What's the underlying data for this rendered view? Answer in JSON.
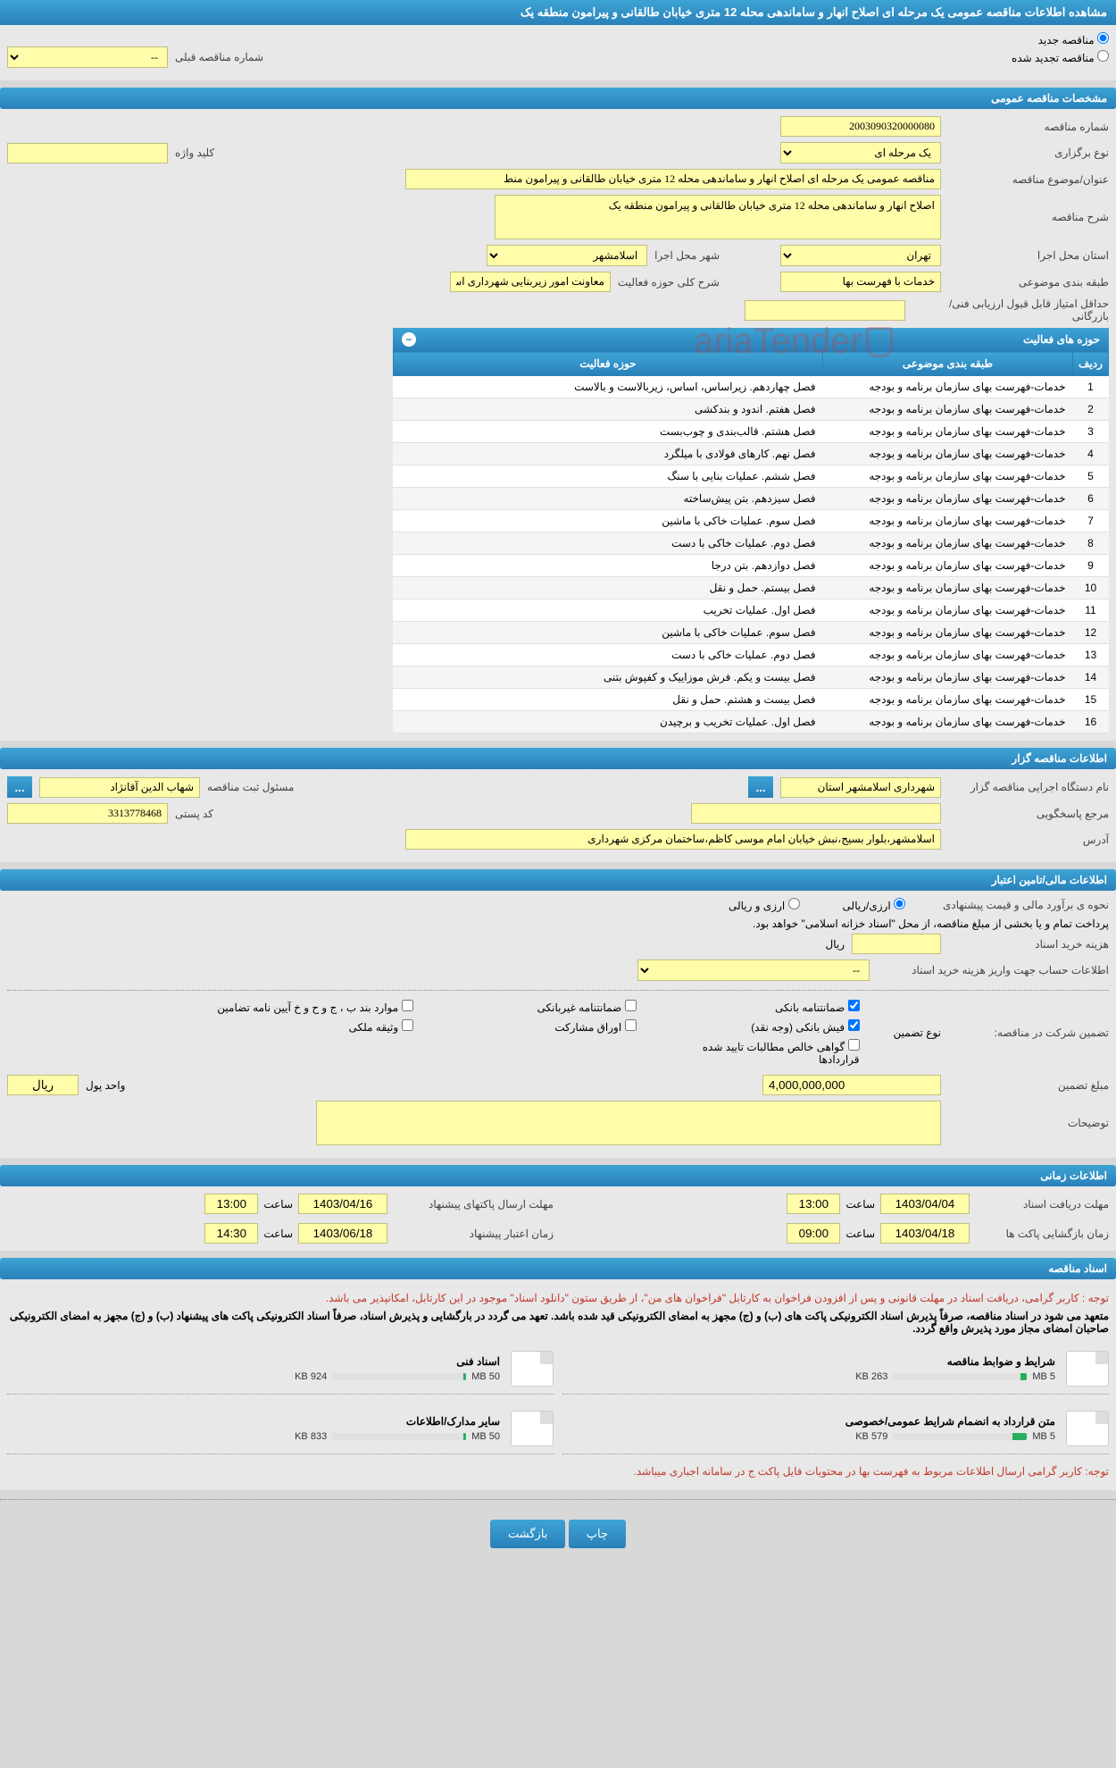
{
  "page_title": "مشاهده اطلاعات مناقصه عمومی یک مرحله ای اصلاح انهار و ساماندهی محله 12 متری خیابان طالقانی و پیرامون منطقه یک",
  "top_radio": {
    "new_tender": "مناقصه جدید",
    "renewed_tender": "مناقصه تجدید شده",
    "prev_label": "شماره مناقصه قبلی",
    "prev_placeholder": "--"
  },
  "section_general": "مشخصات مناقصه عمومی",
  "general": {
    "tender_no_label": "شماره مناقصه",
    "tender_no": "2003090320000080",
    "type_label": "نوع برگزاری",
    "type_value": "یک مرحله ای",
    "keyword_label": "کلید واژه",
    "keyword_value": "",
    "subject_label": "عنوان/موضوع مناقصه",
    "subject_value": "مناقصه عمومی یک مرحله ای اصلاح انهار و ساماندهی محله 12 متری خیابان طالقانی و پیرامون منط",
    "desc_label": "شرح مناقصه",
    "desc_value": "اصلاح انهار و ساماندهی محله 12 متری خیابان طالقانی و پیرامون منطقه یک",
    "province_label": "استان محل اجرا",
    "province_value": "تهران",
    "city_label": "شهر محل اجرا",
    "city_value": "اسلامشهر",
    "class_label": "طبقه بندی موضوعی",
    "class_value": "خدمات با فهرست بها",
    "scope_label": "شرح کلی حوزه فعالیت",
    "scope_value": "معاونت امور زیربنایی شهرداری اسلامشهر",
    "min_score_label": "حداقل امتیاز قابل قبول ارزیابی فنی/بازرگانی",
    "min_score_value": ""
  },
  "activity_table": {
    "title": "حوزه های فعالیت",
    "col_row": "ردیف",
    "col_class": "طبقه بندی موضوعی",
    "col_scope": "حوزه فعالیت",
    "rows": [
      {
        "n": "1",
        "c": "خدمات-فهرست بهای سازمان برنامه و بودجه",
        "s": "فصل چهاردهم. زیراساس، اساس، زیربالاست و بالاست"
      },
      {
        "n": "2",
        "c": "خدمات-فهرست بهای سازمان برنامه و بودجه",
        "s": "فصل هفتم. اندود و بندکشی"
      },
      {
        "n": "3",
        "c": "خدمات-فهرست بهای سازمان برنامه و بودجه",
        "s": "فصل هشتم. قالب‌بندی و چوب‌بست"
      },
      {
        "n": "4",
        "c": "خدمات-فهرست بهای سازمان برنامه و بودجه",
        "s": "فصل نهم. کارهای فولادی با میلگرد"
      },
      {
        "n": "5",
        "c": "خدمات-فهرست بهای سازمان برنامه و بودجه",
        "s": "فصل ششم. عملیات بنایی با سنگ"
      },
      {
        "n": "6",
        "c": "خدمات-فهرست بهای سازمان برنامه و بودجه",
        "s": "فصل سیزدهم. بتن پیش‌ساخته"
      },
      {
        "n": "7",
        "c": "خدمات-فهرست بهای سازمان برنامه و بودجه",
        "s": "فصل سوم. عملیات خاکی با ماشین"
      },
      {
        "n": "8",
        "c": "خدمات-فهرست بهای سازمان برنامه و بودجه",
        "s": "فصل دوم. عملیات خاکی با دست"
      },
      {
        "n": "9",
        "c": "خدمات-فهرست بهای سازمان برنامه و بودجه",
        "s": "فصل دوازدهم. بتن درجا"
      },
      {
        "n": "10",
        "c": "خدمات-فهرست بهای سازمان برنامه و بودجه",
        "s": "فصل بیستم. حمل و نقل"
      },
      {
        "n": "11",
        "c": "خدمات-فهرست بهای سازمان برنامه و بودجه",
        "s": "فصل اول. عملیات تخریب"
      },
      {
        "n": "12",
        "c": "خدمات-فهرست بهای سازمان برنامه و بودجه",
        "s": "فصل سوم. عملیات خاکی با ماشین"
      },
      {
        "n": "13",
        "c": "خدمات-فهرست بهای سازمان برنامه و بودجه",
        "s": "فصل دوم. عملیات خاکی با دست"
      },
      {
        "n": "14",
        "c": "خدمات-فهرست بهای سازمان برنامه و بودجه",
        "s": "فصل بیست و یکم. فرش موزاییک و کفپوش بتنی"
      },
      {
        "n": "15",
        "c": "خدمات-فهرست بهای سازمان برنامه و بودجه",
        "s": "فصل بیست و هشتم. حمل و نقل"
      },
      {
        "n": "16",
        "c": "خدمات-فهرست بهای سازمان برنامه و بودجه",
        "s": "فصل اول. عملیات تخریب و برچیدن"
      }
    ]
  },
  "section_org": "اطلاعات مناقصه گزار",
  "org": {
    "exec_label": "نام دستگاه اجرایی مناقصه گزار",
    "exec_value": "شهرداری اسلامشهر استان",
    "reg_label": "مسئول ثبت مناقصه",
    "reg_value": "شهاب الدین آقانژاد",
    "resp_label": "مرجع پاسخگویی",
    "resp_value": "",
    "postal_label": "کد پستی",
    "postal_value": "3313778468",
    "address_label": "آدرس",
    "address_value": "اسلامشهر،بلوار بسیج،نبش خیابان امام موسی کاظم،ساختمان مرکزی شهرداری"
  },
  "section_financial": "اطلاعات مالی/تامین اعتبار",
  "financial": {
    "est_label": "نحوه ی برآورد مالی و قیمت پیشنهادی",
    "rial_opt": "ارزی/ریالی",
    "fx_opt": "ارزی و ریالی",
    "payment_note": "پرداخت تمام و یا بخشی از مبلغ مناقصه، از محل \"اسناد خزانه اسلامی\" خواهد بود.",
    "purchase_cost_label": "هزینه خرید اسناد",
    "rial_unit": "ریال",
    "deposit_account_label": "اطلاعات حساب جهت واریز هزینه خرید اسناد",
    "deposit_placeholder": "--"
  },
  "guarantee": {
    "participation_label": "تضمین شرکت در مناقصه:",
    "type_label": "نوع تضمین",
    "opt_bank": "ضمانتنامه بانکی",
    "opt_nonbank": "ضمانتنامه غیربانکی",
    "opt_items": "موارد بند ب ، ج و ح و خ آیین نامه تضامین",
    "opt_bankfish": "فیش بانکی (وجه نقد)",
    "opt_securities": "اوراق مشارکت",
    "opt_property": "وثیقه ملکی",
    "opt_pure": "گواهی خالص مطالبات تایید شده قراردادها",
    "amount_label": "مبلغ تضمین",
    "amount_value": "4,000,000,000",
    "unit_label": "واحد پول",
    "unit_value": "ریال",
    "notes_label": "توضیحات"
  },
  "section_time": "اطلاعات زمانی",
  "time": {
    "receive_label": "مهلت دریافت اسناد",
    "receive_date": "1403/04/04",
    "receive_time": "13:00",
    "send_label": "مهلت ارسال پاکتهای پیشنهاد",
    "send_date": "1403/04/16",
    "send_time": "13:00",
    "open_label": "زمان بازگشایی پاکت ها",
    "open_date": "1403/04/18",
    "open_time": "09:00",
    "validity_label": "زمان اعتبار پیشنهاد",
    "validity_date": "1403/06/18",
    "validity_time": "14:30",
    "hour_label": "ساعت"
  },
  "section_docs": "اسناد مناقصه",
  "docs_note1": "توجه : کاربر گرامی، دریافت اسناد در مهلت قانونی و پس از افزودن فراخوان به کارتابل \"فراخوان های من\"، از طریق ستون \"دانلود اسناد\" موجود در این کارتابل، امکانپذیر می باشد.",
  "docs_note2": "متعهد می شود در اسناد مناقصه، صرفاً پذیرش اسناد الکترونیکی پاکت های (ب) و (ج) مجهز به امضای الکترونیکی قید شده باشد. تعهد می گردد در بارگشایی و پذیرش اسناد، صرفاً اسناد الکترونیکی پاکت های پیشنهاد (ب) و (ج) مجهز به امضای الکترونیکی صاحبان امضای مجاز مورد پذیرش واقع گردد.",
  "docs": [
    {
      "title": "شرایط و ضوابط مناقصه",
      "used": "263 KB",
      "limit": "5 MB",
      "pct": 5
    },
    {
      "title": "اسناد فنی",
      "used": "924 KB",
      "limit": "50 MB",
      "pct": 2
    },
    {
      "title": "متن قرارداد به انضمام شرایط عمومی/خصوصی",
      "used": "579 KB",
      "limit": "5 MB",
      "pct": 11
    },
    {
      "title": "سایر مدارک/اطلاعات",
      "used": "833 KB",
      "limit": "50 MB",
      "pct": 2
    }
  ],
  "docs_note3": "توجه: کاربر گرامی ارسال اطلاعات مربوط به فهرست بها در محتویات فایل پاکت ج در سامانه اجباری میباشد.",
  "buttons": {
    "print": "چاپ",
    "back": "بازگشت"
  },
  "watermark": "ariaTender",
  "ellipsis": "..."
}
